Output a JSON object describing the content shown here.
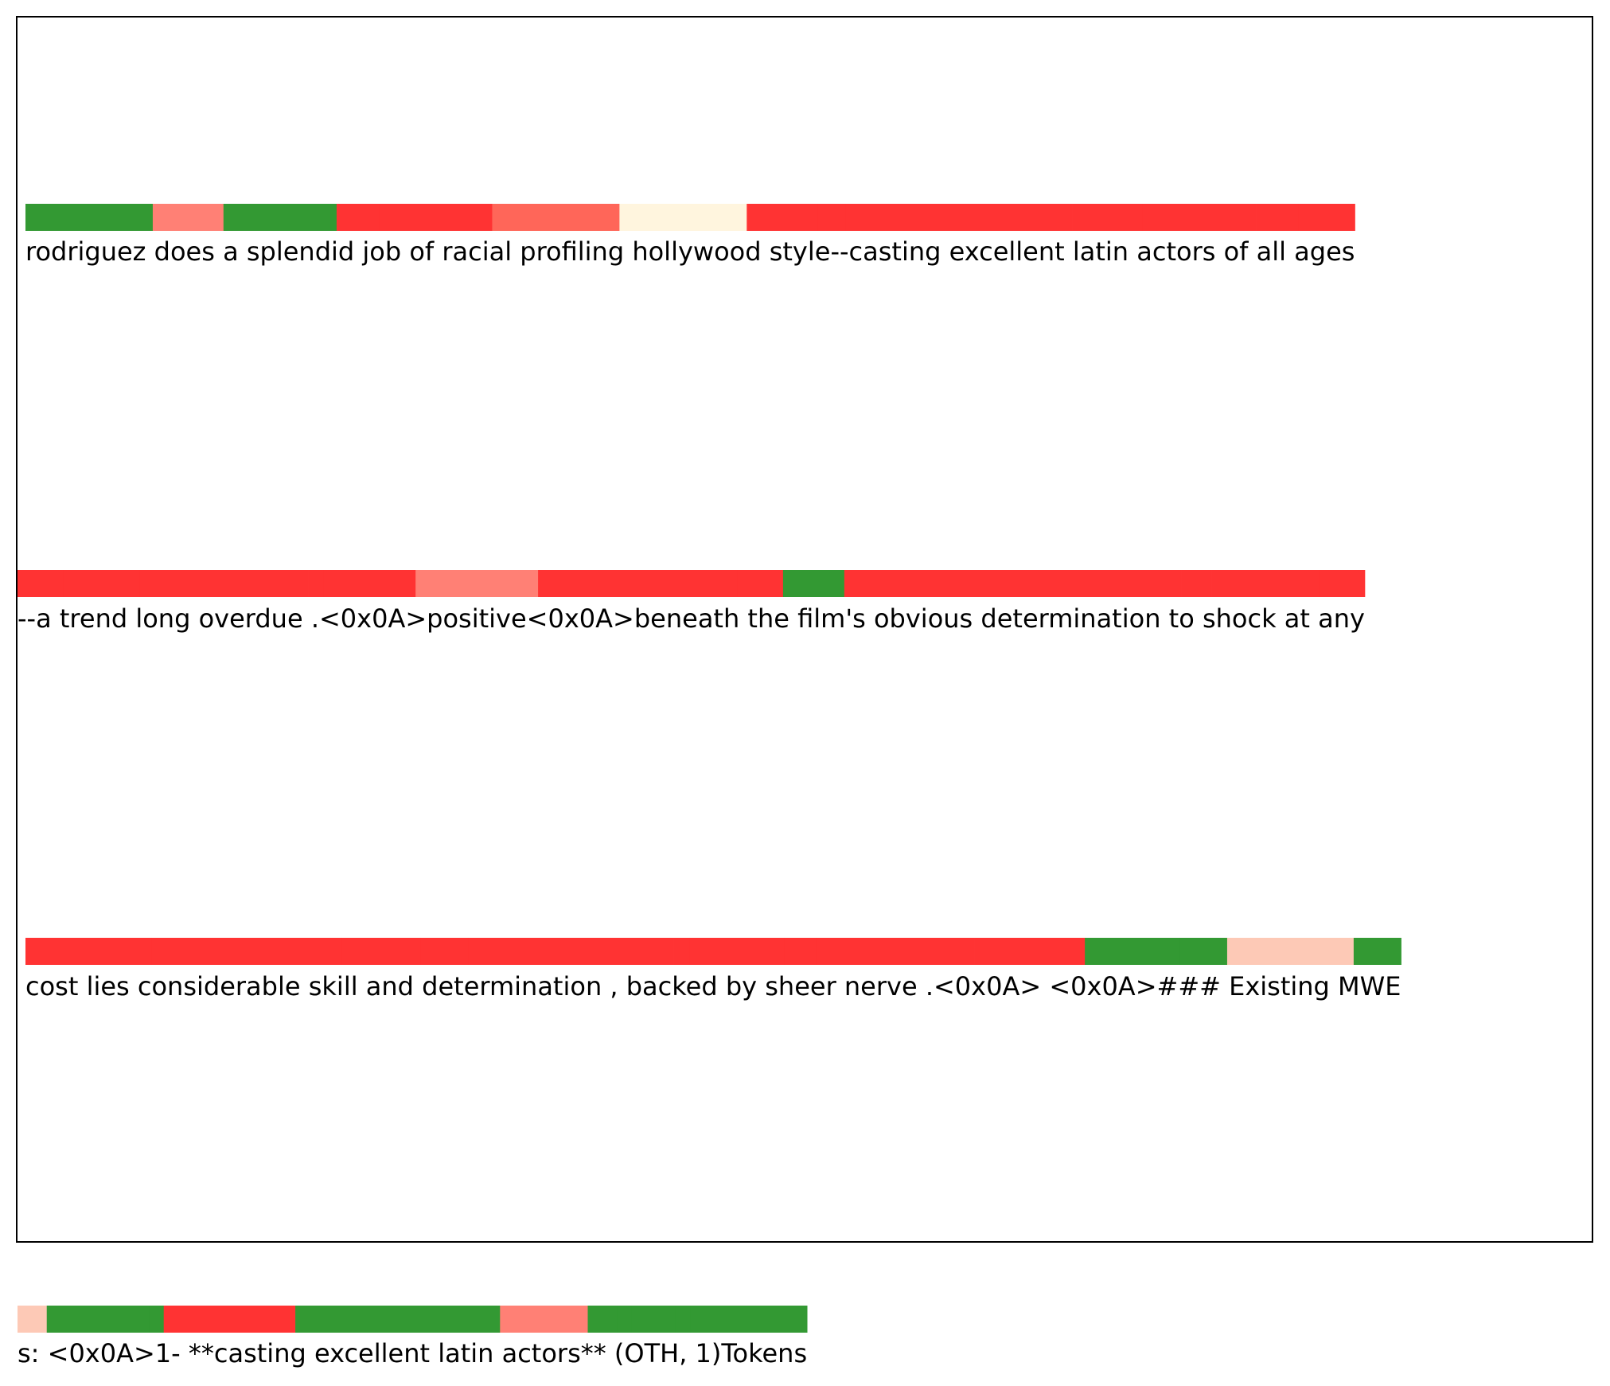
{
  "chart_data": {
    "type": "heatmap",
    "title": "",
    "colors": {
      "green": "#339933",
      "red": "#ff3333",
      "salmon": "#ff8075",
      "light_red": "#ff6659",
      "cream": "#fff5de",
      "peach": "#fdc9b6"
    },
    "rows": [
      {
        "text": "rodriguez does a splendid job of racial profiling hollywood style--casting excellent latin actors of all ages",
        "segments": [
          {
            "token": "rodriguez",
            "color": "green"
          },
          {
            "token": "does",
            "color": "salmon"
          },
          {
            "token": "a",
            "color": "salmon"
          },
          {
            "token": "splendid",
            "color": "green"
          },
          {
            "token": "job",
            "color": "red"
          },
          {
            "token": "of",
            "color": "red"
          },
          {
            "token": "racial",
            "color": "red"
          },
          {
            "token": "profiling",
            "color": "light_red"
          },
          {
            "token": "hollywood",
            "color": "cream"
          },
          {
            "token": "style",
            "color": "red"
          },
          {
            "token": "--",
            "color": "red"
          },
          {
            "token": "casting",
            "color": "red"
          },
          {
            "token": "excellent",
            "color": "red"
          },
          {
            "token": "latin",
            "color": "red"
          },
          {
            "token": "actors",
            "color": "red"
          },
          {
            "token": "of",
            "color": "red"
          },
          {
            "token": "all",
            "color": "red"
          },
          {
            "token": "ages",
            "color": "red"
          }
        ]
      },
      {
        "text": "--a trend long overdue .<0x0A>positive<0x0A>beneath the film's obvious determination to shock at any",
        "segments": [
          {
            "token": "--",
            "color": "red"
          },
          {
            "token": "a",
            "color": "red"
          },
          {
            "token": "trend",
            "color": "red"
          },
          {
            "token": "long",
            "color": "red"
          },
          {
            "token": "overdue",
            "color": "red"
          },
          {
            "token": ".",
            "color": "red"
          },
          {
            "token": "<0x0A>",
            "color": "red"
          },
          {
            "token": "positive",
            "color": "salmon"
          },
          {
            "token": "<0x0A>",
            "color": "red"
          },
          {
            "token": "beneath",
            "color": "red"
          },
          {
            "token": "the",
            "color": "red"
          },
          {
            "token": "film",
            "color": "green"
          },
          {
            "token": "'s",
            "color": "red"
          },
          {
            "token": "obvious",
            "color": "red"
          },
          {
            "token": "determination",
            "color": "red"
          },
          {
            "token": "to",
            "color": "red"
          },
          {
            "token": "shock",
            "color": "red"
          },
          {
            "token": "at",
            "color": "red"
          },
          {
            "token": "any",
            "color": "red"
          }
        ]
      },
      {
        "text": "cost lies considerable skill and determination , backed by sheer nerve .<0x0A> <0x0A>### Existing MWE",
        "segments": [
          {
            "token": "cost",
            "color": "red"
          },
          {
            "token": "lies",
            "color": "red"
          },
          {
            "token": "considerable",
            "color": "red"
          },
          {
            "token": "skill",
            "color": "red"
          },
          {
            "token": "and",
            "color": "red"
          },
          {
            "token": "determination",
            "color": "red"
          },
          {
            "token": ",",
            "color": "red"
          },
          {
            "token": "backed",
            "color": "red"
          },
          {
            "token": "by",
            "color": "red"
          },
          {
            "token": "sheer",
            "color": "red"
          },
          {
            "token": "nerve",
            "color": "red"
          },
          {
            "token": ".<0x0A>",
            "color": "red"
          },
          {
            "token": "<0x0A>",
            "color": "green"
          },
          {
            "token": "###",
            "color": "green"
          },
          {
            "token": "Existing",
            "color": "peach"
          },
          {
            "token": "MWE",
            "color": "green"
          }
        ]
      },
      {
        "text": "s: <0x0A>1- **casting excellent latin actors** (OTH, 1)Tokens",
        "segments": [
          {
            "token": "s",
            "color": "peach"
          },
          {
            "token": ":",
            "color": "peach"
          },
          {
            "token": "<0x0A>",
            "color": "green"
          },
          {
            "token": "1",
            "color": "green"
          },
          {
            "token": "-",
            "color": "green"
          },
          {
            "token": "**",
            "color": "red"
          },
          {
            "token": "casting",
            "color": "red"
          },
          {
            "token": "excellent",
            "color": "green"
          },
          {
            "token": "latin",
            "color": "green"
          },
          {
            "token": "actors",
            "color": "salmon"
          },
          {
            "token": "**",
            "color": "green"
          },
          {
            "token": "(",
            "color": "green"
          },
          {
            "token": "OTH",
            "color": "green"
          },
          {
            "token": ",",
            "color": "green"
          },
          {
            "token": "1",
            "color": "green"
          },
          {
            "token": ")",
            "color": "green"
          },
          {
            "token": "Tokens",
            "color": "green"
          }
        ]
      }
    ]
  }
}
